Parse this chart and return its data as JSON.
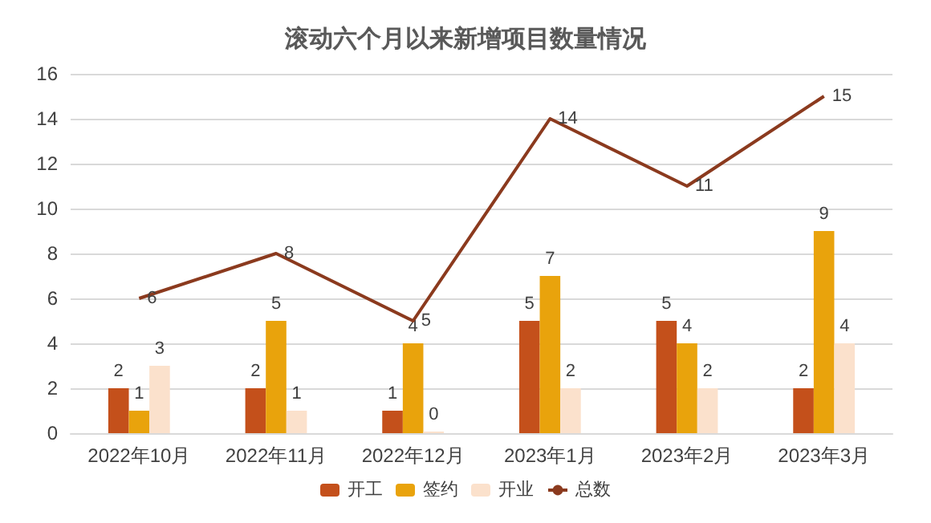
{
  "chart_data": {
    "type": "bar",
    "title": "滚动六个月以来新增项目数量情况",
    "categories": [
      "2022年10月",
      "2022年11月",
      "2022年12月",
      "2023年1月",
      "2023年2月",
      "2023年3月"
    ],
    "series": [
      {
        "name": "开工",
        "color": "#c4501b",
        "values": [
          2,
          2,
          1,
          5,
          5,
          2
        ]
      },
      {
        "name": "签约",
        "color": "#e9a30c",
        "values": [
          1,
          5,
          4,
          7,
          4,
          9
        ]
      },
      {
        "name": "开业",
        "color": "#fbe1cc",
        "values": [
          3,
          1,
          0,
          2,
          2,
          4
        ]
      },
      {
        "name": "总数",
        "type": "line",
        "color": "#8b3a1e",
        "values": [
          6,
          8,
          5,
          14,
          11,
          15
        ],
        "marker": "none"
      }
    ],
    "ylim": [
      0,
      16
    ],
    "yticks": [
      0,
      2,
      4,
      6,
      8,
      10,
      12,
      14,
      16
    ],
    "grid": "y",
    "legend": "bottom",
    "data_labels": true
  }
}
